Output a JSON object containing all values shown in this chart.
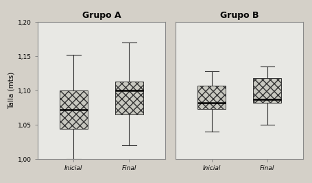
{
  "title_A": "Grupo A",
  "title_B": "Grupo B",
  "ylabel": "Talla (mts)",
  "xtick_labels": [
    "Inicial",
    "Final"
  ],
  "ylim": [
    1.0,
    1.2
  ],
  "yticks": [
    1.0,
    1.05,
    1.1,
    1.15,
    1.2
  ],
  "outer_bg": "#d4d0c8",
  "inner_bg": "#e8e8e4",
  "box_facecolor": "#c8c8c0",
  "box_edgecolor": "#333333",
  "median_color": "#000000",
  "whisker_color": "#333333",
  "spine_color": "#888888",
  "title_fontsize": 9,
  "tick_fontsize": 6.5,
  "ylabel_fontsize": 7.5,
  "grupos": {
    "A": {
      "Inicial": {
        "whislo": 1.0,
        "q1": 1.044,
        "med": 1.072,
        "q3": 1.1,
        "whishi": 1.152
      },
      "Final": {
        "whislo": 1.02,
        "q1": 1.065,
        "med": 1.1,
        "q3": 1.113,
        "whishi": 1.17
      }
    },
    "B": {
      "Inicial": {
        "whislo": 1.04,
        "q1": 1.073,
        "med": 1.082,
        "q3": 1.107,
        "whishi": 1.128
      },
      "Final": {
        "whislo": 1.05,
        "q1": 1.082,
        "med": 1.087,
        "q3": 1.118,
        "whishi": 1.135
      }
    }
  }
}
